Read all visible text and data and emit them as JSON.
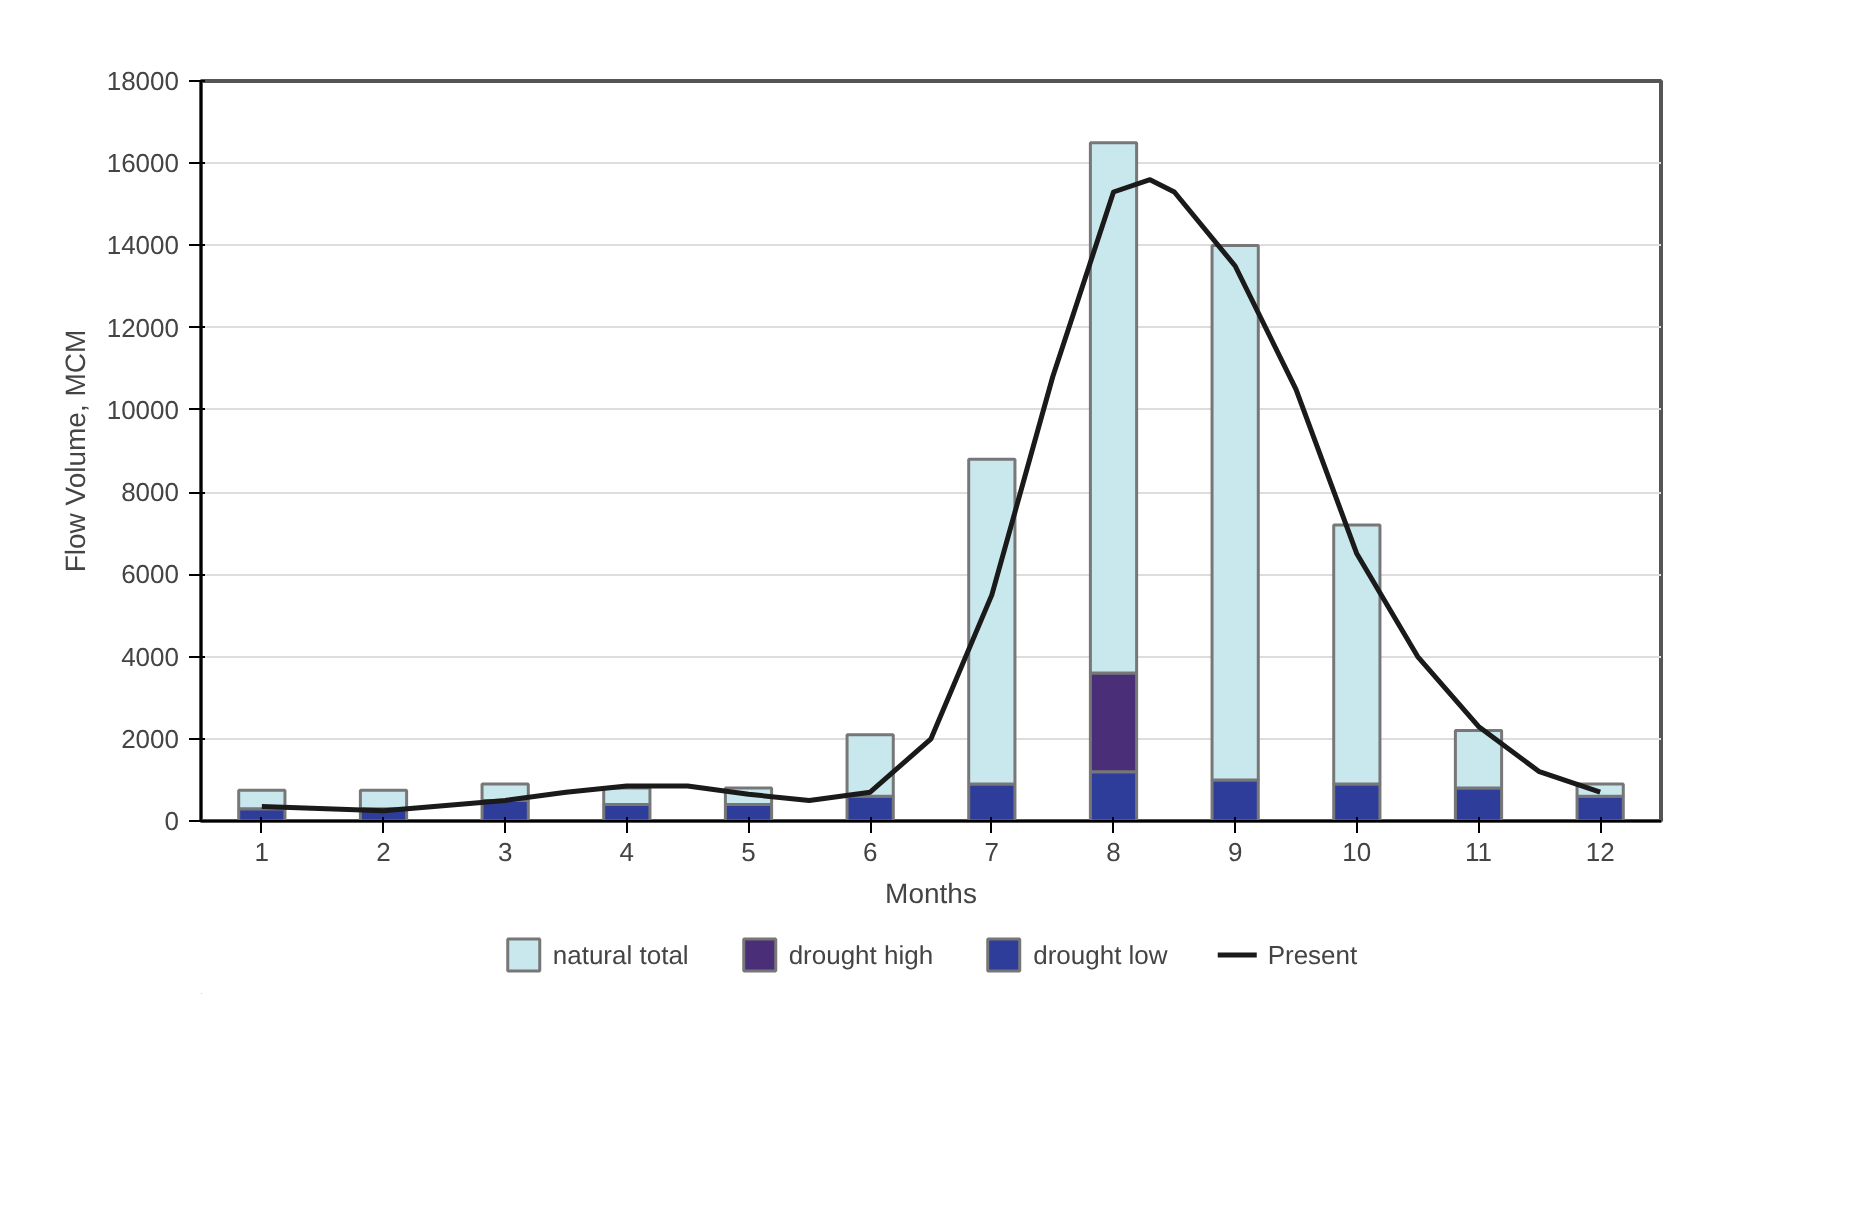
{
  "chart_data": {
    "type": "bar",
    "stacked": true,
    "xlabel": "Months",
    "ylabel": "Flow Volume, MCM",
    "x": [
      1,
      2,
      3,
      4,
      5,
      6,
      7,
      8,
      9,
      10,
      11,
      12
    ],
    "xlim": [
      0.5,
      12.5
    ],
    "xticks": [
      1,
      2,
      3,
      4,
      5,
      6,
      7,
      8,
      9,
      10,
      11,
      12
    ],
    "ylim": [
      0,
      18000
    ],
    "yticks": [
      0,
      2000,
      4000,
      6000,
      8000,
      10000,
      12000,
      14000,
      16000,
      18000
    ],
    "grid": "y",
    "legend": "bottom",
    "series": [
      {
        "name": "drought low",
        "color": "#2e3d9a",
        "values": [
          300,
          300,
          500,
          400,
          400,
          600,
          900,
          1200,
          1000,
          900,
          800,
          600
        ]
      },
      {
        "name": "drought high",
        "color": "#4a2f78",
        "values": [
          null,
          null,
          null,
          null,
          null,
          null,
          null,
          2400,
          null,
          null,
          null,
          null
        ]
      },
      {
        "name": "natural total",
        "color": "#c8e8ee",
        "values": [
          450,
          450,
          400,
          400,
          400,
          1500,
          7900,
          12900,
          13000,
          6300,
          1400,
          300
        ]
      },
      {
        "name": "Present",
        "type": "line",
        "color": "#1a1a1a",
        "x": [
          1,
          2,
          3,
          3.5,
          4,
          4.5,
          5,
          5.5,
          6,
          6.5,
          7,
          7.5,
          8,
          8.3,
          8.5,
          9,
          9.5,
          10,
          10.5,
          11,
          11.5,
          12
        ],
        "values": [
          350,
          250,
          500,
          700,
          850,
          850,
          650,
          500,
          700,
          2000,
          5500,
          10800,
          15300,
          15600,
          15300,
          13500,
          10500,
          6500,
          4000,
          2300,
          1200,
          700
        ]
      }
    ]
  }
}
